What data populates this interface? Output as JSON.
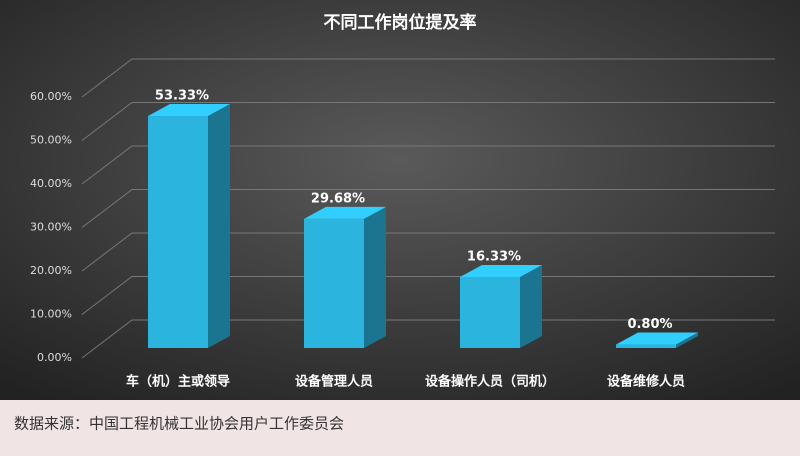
{
  "chart_data": {
    "type": "bar3d",
    "title": "不同工作岗位提及率",
    "categories": [
      "车（机）主或领导",
      "设备管理人员",
      "设备操作人员（司机）",
      "设备维修人员"
    ],
    "values": [
      53.33,
      29.68,
      16.33,
      0.8
    ],
    "value_labels": [
      "53.33%",
      "29.68%",
      "16.33%",
      "0.80%"
    ],
    "color": "#2ab4de",
    "ylim": [
      0,
      60
    ],
    "yticks": [
      {
        "value": 0,
        "label": "0.00%"
      },
      {
        "value": 10,
        "label": "10.00%"
      },
      {
        "value": 20,
        "label": "20.00%"
      },
      {
        "value": 30,
        "label": "30.00%"
      },
      {
        "value": 40,
        "label": "40.00%"
      },
      {
        "value": 50,
        "label": "50.00%"
      },
      {
        "value": 60,
        "label": "60.00%"
      }
    ],
    "grid": true,
    "source": "数据来源：中国工程机械工业协会用户工作委员会"
  }
}
